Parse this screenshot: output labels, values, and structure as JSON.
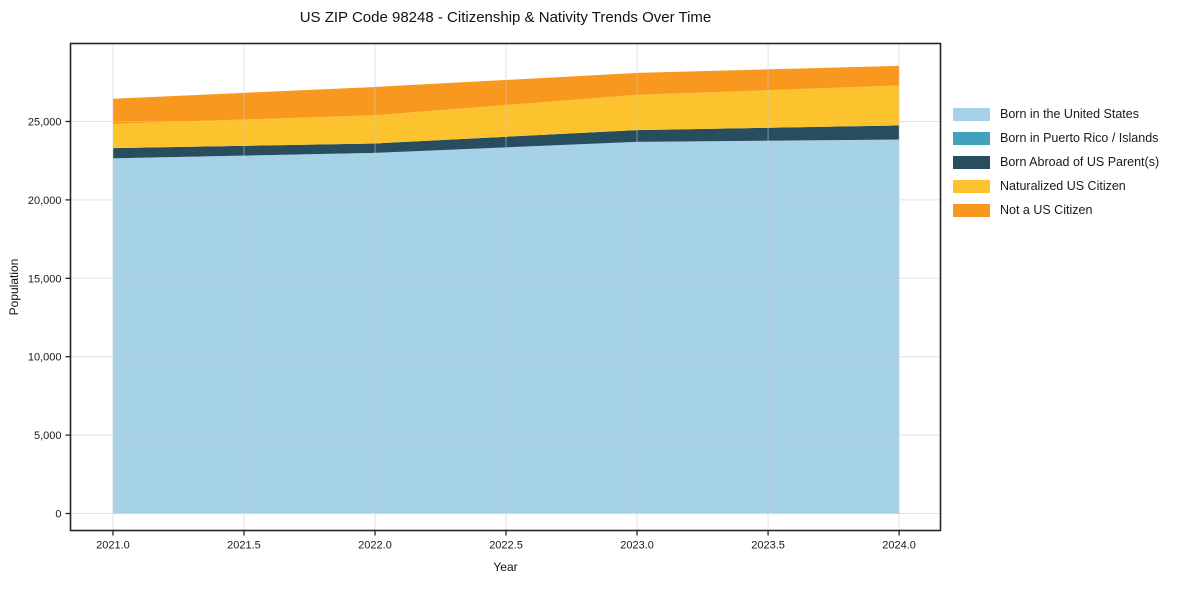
{
  "chart_data": {
    "type": "area",
    "stacked": true,
    "title": "US ZIP Code 98248 - Citizenship & Nativity Trends Over Time",
    "xlabel": "Year",
    "ylabel": "Population",
    "x": [
      2021,
      2022,
      2023,
      2024
    ],
    "series": [
      {
        "name": "Born in the United States",
        "color": "#A6D2E8",
        "values": [
          22650,
          23000,
          23700,
          23850
        ]
      },
      {
        "name": "Born in Puerto Rico / Islands",
        "color": "#41A2BE",
        "values": [
          0,
          0,
          0,
          0
        ]
      },
      {
        "name": "Born Abroad of US Parent(s)",
        "color": "#274D5E",
        "values": [
          650,
          600,
          750,
          900
        ]
      },
      {
        "name": "Naturalized US Citizen",
        "color": "#FCC32F",
        "values": [
          1550,
          1800,
          2250,
          2550
        ]
      },
      {
        "name": "Not a US Citizen",
        "color": "#F8981F",
        "values": [
          1600,
          1800,
          1400,
          1250
        ]
      }
    ],
    "totals": [
      26450,
      27200,
      28100,
      28550
    ],
    "x_ticks": [
      "2021.0",
      "2021.5",
      "2022.0",
      "2022.5",
      "2023.0",
      "2023.5",
      "2024.0"
    ],
    "x_tick_values": [
      2021.0,
      2021.5,
      2022.0,
      2022.5,
      2023.0,
      2023.5,
      2024.0
    ],
    "y_ticks": [
      "0",
      "5,000",
      "10,000",
      "15,000",
      "20,000",
      "25,000"
    ],
    "y_tick_values": [
      0,
      5000,
      10000,
      15000,
      20000,
      25000
    ],
    "xlim": [
      2020.838,
      2024.158
    ],
    "ylim": [
      -1084,
      29974
    ],
    "grid": true,
    "legend_position": "right",
    "colors": {
      "spine": "#262626",
      "grid": "rgba(203,203,203,0.55)",
      "text": "#1a1a1a"
    }
  }
}
